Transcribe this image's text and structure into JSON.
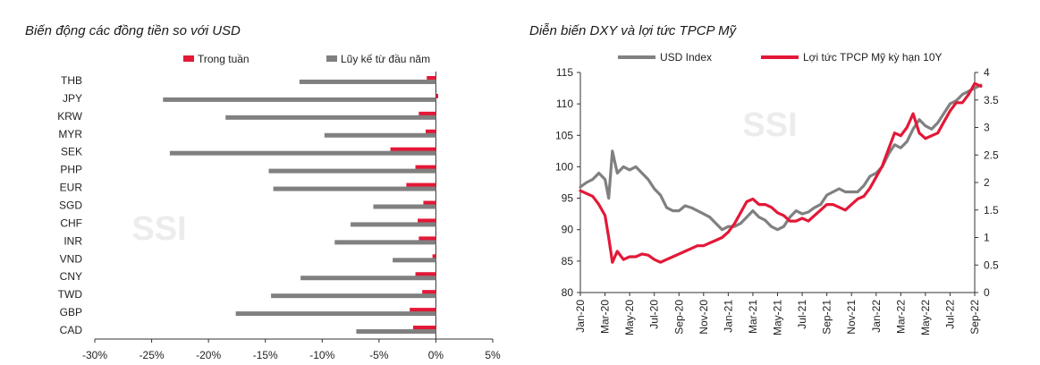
{
  "chart_data": [
    {
      "type": "bar",
      "orientation": "horizontal",
      "title": "Biến động các đồng tiền so với USD",
      "categories": [
        "THB",
        "JPY",
        "KRW",
        "MYR",
        "SEK",
        "PHP",
        "EUR",
        "SGD",
        "CHF",
        "INR",
        "VND",
        "CNY",
        "TWD",
        "GBP",
        "CAD"
      ],
      "series": [
        {
          "name": "Trong tuần",
          "color": "#e31837",
          "values": [
            -0.8,
            0.2,
            -1.5,
            -0.9,
            -4.0,
            -1.8,
            -2.6,
            -1.1,
            -1.6,
            -1.5,
            -0.3,
            -1.8,
            -1.2,
            -2.3,
            -2.0
          ]
        },
        {
          "name": "Lũy kế từ đầu năm",
          "color": "#808080",
          "values": [
            -12.0,
            -24.0,
            -18.5,
            -9.8,
            -23.4,
            -14.7,
            -14.3,
            -5.5,
            -7.5,
            -8.9,
            -3.8,
            -11.9,
            -14.5,
            -17.6,
            -7.0
          ]
        }
      ],
      "xlim": [
        -30,
        5
      ],
      "xticks": [
        -30,
        -25,
        -20,
        -15,
        -10,
        -5,
        0,
        5
      ],
      "xtick_labels": [
        "-30%",
        "-25%",
        "-20%",
        "-15%",
        "-10%",
        "-5%",
        "0%",
        "5%"
      ],
      "legend_position": "top",
      "watermark": "SSI"
    },
    {
      "type": "line",
      "title": "Diễn biến DXY và lợi tức TPCP Mỹ",
      "xticks": [
        "Jan-20",
        "Mar-20",
        "May-20",
        "Jul-20",
        "Sep-20",
        "Nov-20",
        "Jan-21",
        "Mar-21",
        "May-21",
        "Jul-21",
        "Sep-21",
        "Nov-21",
        "Jan-22",
        "Mar-22",
        "May-22",
        "Jul-22",
        "Sep-22"
      ],
      "y_left": {
        "range": [
          80,
          115
        ],
        "ticks": [
          80,
          85,
          90,
          95,
          100,
          105,
          110,
          115
        ]
      },
      "y_right": {
        "range": [
          0,
          4
        ],
        "ticks": [
          0,
          0.5,
          1,
          1.5,
          2,
          2.5,
          3,
          3.5,
          4
        ],
        "tick_labels": [
          "0",
          "0.5",
          "1",
          "1.5",
          "2",
          "2.5",
          "3",
          "3.5",
          "4"
        ]
      },
      "series": [
        {
          "name": "USD Index",
          "axis": "left",
          "color": "#808080",
          "x": [
            0,
            0.5,
            1,
            1.5,
            2,
            2.3,
            2.6,
            3,
            3.5,
            4,
            4.5,
            5,
            5.5,
            6,
            6.5,
            7,
            7.5,
            8,
            8.5,
            9,
            9.5,
            10,
            10.5,
            11,
            11.5,
            12,
            12.5,
            13,
            13.5,
            14,
            14.5,
            15,
            15.5,
            16,
            16.5,
            17,
            17.5,
            18,
            18.5,
            19,
            19.5,
            20,
            20.5,
            21,
            21.5,
            22,
            22.5,
            23,
            23.5,
            24,
            24.5,
            25,
            25.5,
            26,
            26.5,
            27,
            27.5,
            28,
            28.5,
            29,
            29.5,
            30,
            30.5,
            31,
            31.5,
            32,
            32.5
          ],
          "y": [
            96.8,
            97.5,
            98.0,
            99.0,
            98.0,
            95.0,
            102.5,
            99.0,
            100.0,
            99.5,
            100.0,
            99.0,
            98.0,
            96.5,
            95.5,
            93.5,
            93.0,
            93.0,
            93.8,
            93.5,
            93.0,
            92.5,
            92.0,
            91.0,
            90.0,
            90.5,
            90.5,
            91.0,
            92.0,
            93.0,
            92.0,
            91.5,
            90.5,
            90.0,
            90.5,
            92.0,
            93.0,
            92.5,
            92.8,
            93.5,
            94.0,
            95.5,
            96.0,
            96.5,
            96.0,
            96.0,
            96.0,
            97.0,
            98.5,
            99.0,
            100.0,
            102.0,
            103.5,
            103.0,
            104.0,
            106.0,
            107.5,
            106.5,
            106.0,
            107.0,
            108.5,
            110.0,
            110.5,
            111.5,
            112.0,
            112.5,
            113.0
          ]
        },
        {
          "name": "Lợi tức TPCP Mỹ kỳ hạn 10Y",
          "axis": "right",
          "color": "#e31837",
          "x": [
            0,
            0.5,
            1,
            1.5,
            2,
            2.3,
            2.6,
            3,
            3.5,
            4,
            4.5,
            5,
            5.5,
            6,
            6.5,
            7,
            7.5,
            8,
            8.5,
            9,
            9.5,
            10,
            10.5,
            11,
            11.5,
            12,
            12.5,
            13,
            13.5,
            14,
            14.5,
            15,
            15.5,
            16,
            16.5,
            17,
            17.5,
            18,
            18.5,
            19,
            19.5,
            20,
            20.5,
            21,
            21.5,
            22,
            22.5,
            23,
            23.5,
            24,
            24.5,
            25,
            25.5,
            26,
            26.5,
            27,
            27.5,
            28,
            28.5,
            29,
            29.5,
            30,
            30.5,
            31,
            31.5,
            32,
            32.5
          ],
          "y": [
            1.85,
            1.8,
            1.75,
            1.6,
            1.4,
            1.0,
            0.55,
            0.75,
            0.6,
            0.65,
            0.65,
            0.7,
            0.68,
            0.6,
            0.55,
            0.6,
            0.65,
            0.7,
            0.75,
            0.8,
            0.85,
            0.85,
            0.9,
            0.95,
            1.0,
            1.1,
            1.25,
            1.45,
            1.65,
            1.7,
            1.6,
            1.6,
            1.55,
            1.45,
            1.4,
            1.3,
            1.3,
            1.35,
            1.3,
            1.4,
            1.5,
            1.6,
            1.6,
            1.55,
            1.5,
            1.6,
            1.7,
            1.75,
            1.9,
            2.1,
            2.3,
            2.6,
            2.9,
            2.85,
            3.0,
            3.25,
            2.9,
            2.8,
            2.85,
            2.9,
            3.1,
            3.3,
            3.45,
            3.45,
            3.6,
            3.8,
            3.75
          ]
        }
      ],
      "legend_position": "top",
      "watermark": "SSI"
    }
  ]
}
